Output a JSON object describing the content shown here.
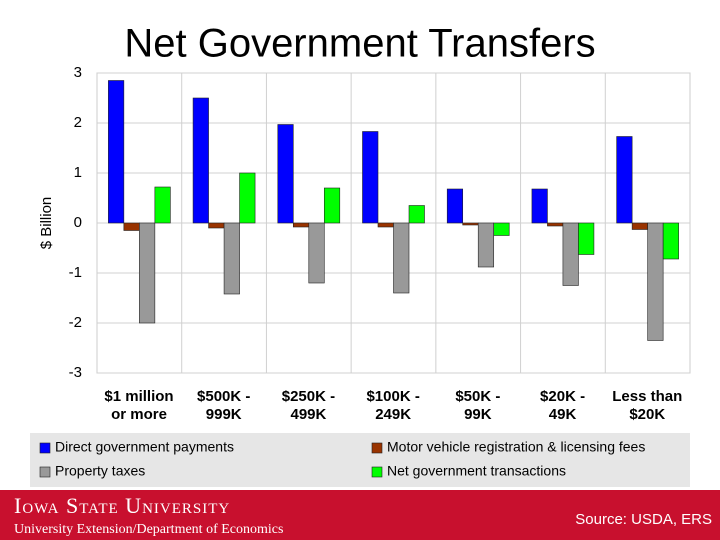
{
  "chart_data": {
    "type": "bar",
    "title": "Net Government Transfers",
    "y_label": "$ Billion",
    "categories": [
      "$1 million\nor more",
      "$500K -\n999K",
      "$250K -\n499K",
      "$100K -\n249K",
      "$50K -\n99K",
      "$20K -\n49K",
      "Less than\n$20K"
    ],
    "series": [
      {
        "name": "Direct government payments",
        "color": "#0000ff",
        "values": [
          2.85,
          2.5,
          1.97,
          1.83,
          0.68,
          0.68,
          1.73
        ]
      },
      {
        "name": "Motor vehicle registration & licensing fees",
        "color": "#993300",
        "values": [
          -0.15,
          -0.1,
          -0.08,
          -0.08,
          -0.04,
          -0.06,
          -0.13
        ]
      },
      {
        "name": "Property taxes",
        "color": "#999999",
        "values": [
          -2.0,
          -1.42,
          -1.2,
          -1.4,
          -0.88,
          -1.25,
          -2.35
        ]
      },
      {
        "name": "Net government transactions",
        "color": "#00ff00",
        "values": [
          0.72,
          1.0,
          0.7,
          0.35,
          -0.25,
          -0.63,
          -0.72
        ]
      }
    ],
    "ylim": [
      -3,
      3
    ],
    "yticks": [
      -3,
      -2,
      -1,
      0,
      1,
      2,
      3
    ],
    "grid": true
  },
  "footer": {
    "university": "Iowa State University",
    "department": "University Extension/Department of Economics",
    "source": "Source: USDA, ERS"
  }
}
